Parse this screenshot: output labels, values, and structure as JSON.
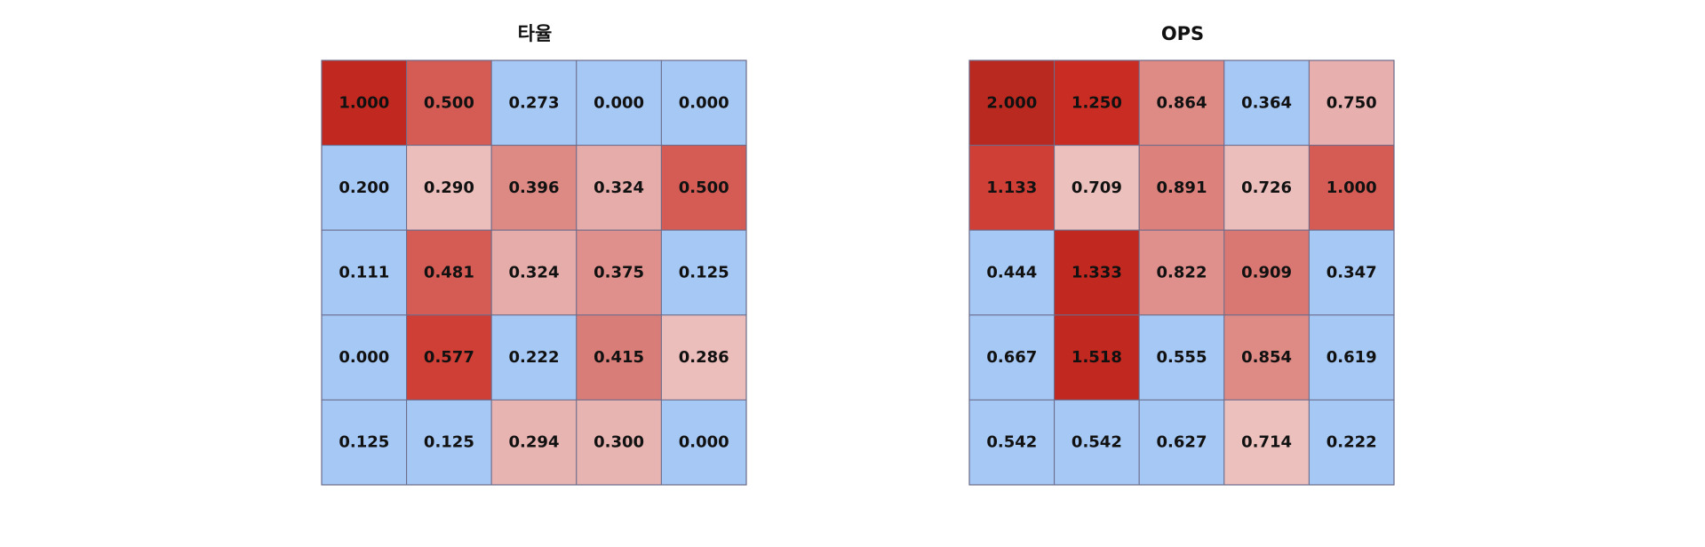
{
  "chart_data": [
    {
      "type": "heatmap",
      "title": "타율",
      "rows": 5,
      "cols": 5,
      "values": [
        [
          1.0,
          0.5,
          0.273,
          0.0,
          0.0
        ],
        [
          0.2,
          0.29,
          0.396,
          0.324,
          0.5
        ],
        [
          0.111,
          0.481,
          0.324,
          0.375,
          0.125
        ],
        [
          0.0,
          0.577,
          0.222,
          0.415,
          0.286
        ],
        [
          0.125,
          0.125,
          0.294,
          0.3,
          0.0
        ]
      ],
      "labels": [
        [
          "1.000",
          "0.500",
          "0.273",
          "0.000",
          "0.000"
        ],
        [
          "0.200",
          "0.290",
          "0.396",
          "0.324",
          "0.500"
        ],
        [
          "0.111",
          "0.481",
          "0.324",
          "0.375",
          "0.125"
        ],
        [
          "0.000",
          "0.577",
          "0.222",
          "0.415",
          "0.286"
        ],
        [
          "0.125",
          "0.125",
          "0.294",
          "0.300",
          "0.000"
        ]
      ],
      "cell_colors": [
        [
          "#c1281f",
          "#d45c55",
          "#a6c8f5",
          "#a6c8f5",
          "#a6c8f5"
        ],
        [
          "#a6c8f5",
          "#ebbebb",
          "#dd8a85",
          "#e6acaa",
          "#d45c55"
        ],
        [
          "#a6c8f5",
          "#d45c55",
          "#e6acaa",
          "#e0908c",
          "#a6c8f5"
        ],
        [
          "#a6c8f5",
          "#cf3f36",
          "#a6c8f5",
          "#d97d78",
          "#ebbebb"
        ],
        [
          "#a6c8f5",
          "#a6c8f5",
          "#e7b4b1",
          "#e7b4b1",
          "#a6c8f5"
        ]
      ],
      "grid": true
    },
    {
      "type": "heatmap",
      "title": "OPS",
      "rows": 5,
      "cols": 5,
      "values": [
        [
          2.0,
          1.25,
          0.864,
          0.364,
          0.75
        ],
        [
          1.133,
          0.709,
          0.891,
          0.726,
          1.0
        ],
        [
          0.444,
          1.333,
          0.822,
          0.909,
          0.347
        ],
        [
          0.667,
          1.518,
          0.555,
          0.854,
          0.619
        ],
        [
          0.542,
          0.542,
          0.627,
          0.714,
          0.222
        ]
      ],
      "labels": [
        [
          "2.000",
          "1.250",
          "0.864",
          "0.364",
          "0.750"
        ],
        [
          "1.133",
          "0.709",
          "0.891",
          "0.726",
          "1.000"
        ],
        [
          "0.444",
          "1.333",
          "0.822",
          "0.909",
          "0.347"
        ],
        [
          "0.667",
          "1.518",
          "0.555",
          "0.854",
          "0.619"
        ],
        [
          "0.542",
          "0.542",
          "0.627",
          "0.714",
          "0.222"
        ]
      ],
      "cell_colors": [
        [
          "#b9291f",
          "#c92c22",
          "#de8a85",
          "#a6c8f5",
          "#e7b0ae"
        ],
        [
          "#cf3f36",
          "#ebc0bd",
          "#dc817c",
          "#ebbebb",
          "#d45c55"
        ],
        [
          "#a6c8f5",
          "#c1281f",
          "#e0908c",
          "#d97872",
          "#a6c8f5"
        ],
        [
          "#a6c8f5",
          "#c1281f",
          "#a6c8f5",
          "#de8a85",
          "#a6c8f5"
        ],
        [
          "#a6c8f5",
          "#a6c8f5",
          "#a6c8f5",
          "#ebc0bd",
          "#a6c8f5"
        ]
      ],
      "grid": true
    }
  ],
  "colors": {
    "grid_line": "#6b6b8a",
    "text": "#111111",
    "background": "#ffffff"
  }
}
